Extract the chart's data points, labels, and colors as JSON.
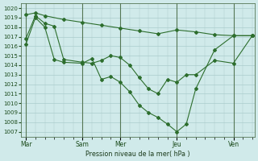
{
  "title": "Pression niveau de la mer( hPa )",
  "bg_color": "#d0eaea",
  "grid_color": "#aacccc",
  "line_color": "#2d6e2d",
  "ylim": [
    1006.5,
    1020.5
  ],
  "yticks": [
    1007,
    1008,
    1009,
    1010,
    1011,
    1012,
    1013,
    1014,
    1015,
    1016,
    1017,
    1018,
    1019,
    1020
  ],
  "day_labels": [
    "Mar",
    "Sam",
    "Mer",
    "Jeu",
    "Ven"
  ],
  "day_positions": [
    0,
    24,
    40,
    64,
    88
  ],
  "xlim": [
    -2,
    97
  ],
  "xtick_minor_step": 1,
  "series": [
    {
      "x": [
        0,
        4,
        8,
        16,
        24,
        32,
        40,
        48,
        56,
        64,
        72,
        80,
        88,
        96
      ],
      "y": [
        1019.3,
        1019.5,
        1019.2,
        1018.8,
        1018.5,
        1018.2,
        1017.9,
        1017.6,
        1017.3,
        1017.7,
        1017.5,
        1017.2,
        1017.1,
        1017.1
      ]
    },
    {
      "x": [
        0,
        4,
        8,
        12,
        16,
        24,
        28,
        32,
        36,
        40,
        44,
        48,
        52,
        56,
        60,
        64,
        68,
        72,
        80,
        88,
        96
      ],
      "y": [
        1016.8,
        1019.2,
        1018.4,
        1018.1,
        1014.6,
        1014.3,
        1014.2,
        1014.5,
        1015.0,
        1014.8,
        1014.0,
        1012.7,
        1011.5,
        1011.0,
        1012.5,
        1012.2,
        1013.0,
        1013.0,
        1014.5,
        1014.2,
        1017.1
      ]
    },
    {
      "x": [
        0,
        4,
        8,
        12,
        16,
        24,
        28,
        32,
        36,
        40,
        44,
        48,
        52,
        56,
        60,
        64,
        68,
        72,
        80,
        88,
        96
      ],
      "y": [
        1016.2,
        1019.0,
        1018.0,
        1014.6,
        1014.3,
        1014.2,
        1014.7,
        1012.5,
        1012.8,
        1012.2,
        1011.2,
        1009.8,
        1009.0,
        1008.5,
        1007.8,
        1007.0,
        1007.8,
        1011.5,
        1015.6,
        1017.1,
        1017.1
      ]
    }
  ]
}
